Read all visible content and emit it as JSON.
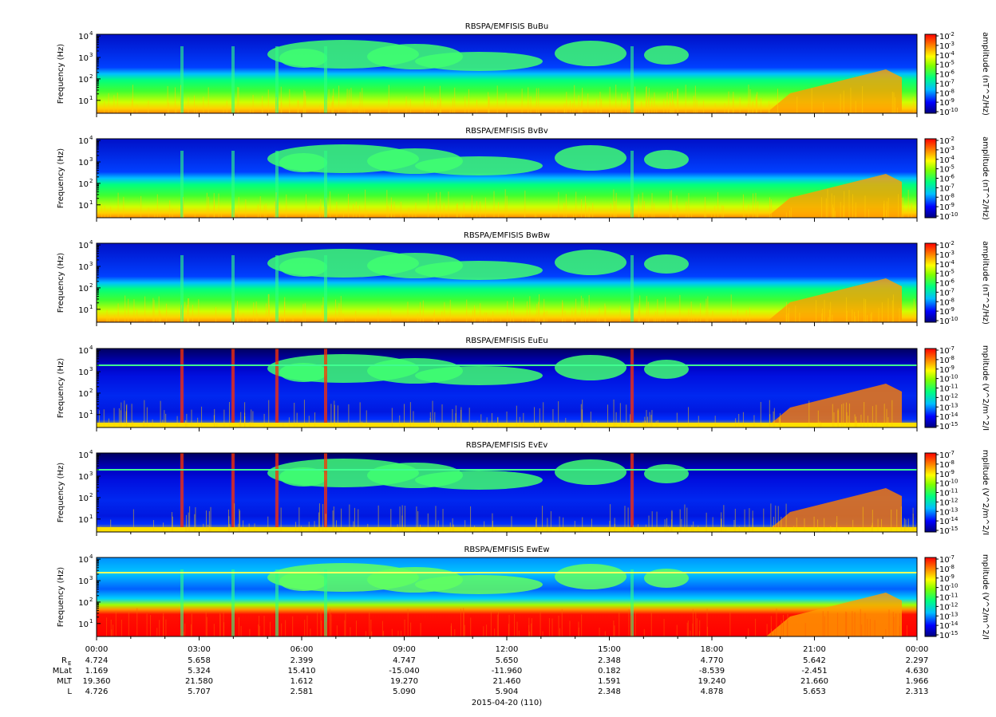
{
  "chart_data": {
    "type": "heatmap",
    "date_label": "2015-04-20 (110)",
    "x_ticks": [
      "00:00",
      "03:00",
      "06:00",
      "09:00",
      "12:00",
      "15:00",
      "18:00",
      "21:00",
      "00:00"
    ],
    "y_label": "Frequency (Hz)",
    "y_scale": "log",
    "y_ticks": [
      {
        "base": "10",
        "exp": "1"
      },
      {
        "base": "10",
        "exp": "2"
      },
      {
        "base": "10",
        "exp": "3"
      },
      {
        "base": "10",
        "exp": "4"
      }
    ],
    "colorscale": [
      "#00007f",
      "#0000ff",
      "#00bfff",
      "#00ff7f",
      "#7fff00",
      "#ffff00",
      "#ff7f00",
      "#ff0000"
    ],
    "panels": [
      {
        "title": "RBSPA/EMFISIS  BuBu",
        "cbar_label": "amplitude (nT^2/Hz)",
        "cbar_exps": [
          "-2",
          "-3",
          "-4",
          "-5",
          "-6",
          "-7",
          "-8",
          "-9",
          "-10"
        ]
      },
      {
        "title": "RBSPA/EMFISIS  BvBv",
        "cbar_label": "amplitude (nT^2/Hz)",
        "cbar_exps": [
          "-2",
          "-3",
          "-4",
          "-5",
          "-6",
          "-7",
          "-8",
          "-9",
          "-10"
        ]
      },
      {
        "title": "RBSPA/EMFISIS  BwBw",
        "cbar_label": "amplitude (nT^2/Hz)",
        "cbar_exps": [
          "-2",
          "-3",
          "-4",
          "-5",
          "-6",
          "-7",
          "-8",
          "-9",
          "-10"
        ]
      },
      {
        "title": "RBSPA/EMFISIS  EuEu",
        "cbar_label": "mplitude (V^2/m^2/I",
        "cbar_exps": [
          "-7",
          "-8",
          "-9",
          "-10",
          "-11",
          "-12",
          "-13",
          "-14",
          "-15"
        ]
      },
      {
        "title": "RBSPA/EMFISIS  EvEv",
        "cbar_label": "mplitude (V^2/m^2/I",
        "cbar_exps": [
          "-7",
          "-8",
          "-9",
          "-10",
          "-11",
          "-12",
          "-13",
          "-14",
          "-15"
        ]
      },
      {
        "title": "RBSPA/EMFISIS  EwEw",
        "cbar_label": "mplitude (V^2/m^2/I",
        "cbar_exps": [
          "-7",
          "-8",
          "-9",
          "-10",
          "-11",
          "-12",
          "-13",
          "-14",
          "-15"
        ]
      }
    ],
    "ephemeris": [
      {
        "label": "R",
        "sub": "E",
        "values": [
          "4.724",
          "5.658",
          "2.399",
          "4.747",
          "5.650",
          "2.348",
          "4.770",
          "5.642",
          "2.297"
        ]
      },
      {
        "label": "MLat",
        "sub": "",
        "values": [
          "1.169",
          "5.324",
          "15.410",
          "-15.040",
          "-11.960",
          "0.182",
          "-8.539",
          "-2.451",
          "4.630"
        ]
      },
      {
        "label": "MLT",
        "sub": "",
        "values": [
          "19.360",
          "21.580",
          "1.612",
          "19.270",
          "21.460",
          "1.591",
          "19.240",
          "21.660",
          "1.966"
        ]
      },
      {
        "label": "L",
        "sub": "",
        "values": [
          "4.726",
          "5.707",
          "2.581",
          "5.090",
          "5.904",
          "2.348",
          "4.878",
          "5.653",
          "2.313"
        ]
      }
    ]
  }
}
